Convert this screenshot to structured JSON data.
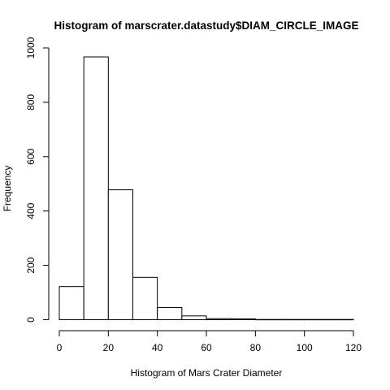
{
  "chart_data": {
    "type": "bar",
    "title": "Histogram of marscrater.datastudy$DIAM_CIRCLE_IMAGE",
    "xlabel": "Histogram of Mars Crater Diameter",
    "ylabel": "Frequency",
    "bins": [
      {
        "from": 0,
        "to": 10,
        "count": 122
      },
      {
        "from": 10,
        "to": 20,
        "count": 967
      },
      {
        "from": 20,
        "to": 30,
        "count": 478
      },
      {
        "from": 30,
        "to": 40,
        "count": 156
      },
      {
        "from": 40,
        "to": 50,
        "count": 45
      },
      {
        "from": 50,
        "to": 60,
        "count": 14
      },
      {
        "from": 60,
        "to": 70,
        "count": 4
      },
      {
        "from": 70,
        "to": 80,
        "count": 3
      },
      {
        "from": 80,
        "to": 90,
        "count": 1
      },
      {
        "from": 90,
        "to": 100,
        "count": 1
      },
      {
        "from": 100,
        "to": 110,
        "count": 1
      },
      {
        "from": 110,
        "to": 120,
        "count": 1
      }
    ],
    "xlim": [
      0,
      120
    ],
    "ylim": [
      0,
      1000
    ],
    "x_ticks": [
      0,
      20,
      40,
      60,
      80,
      100,
      120
    ],
    "y_ticks": [
      0,
      200,
      400,
      600,
      800,
      1000
    ],
    "x_tick_labels": [
      "0",
      "20",
      "40",
      "60",
      "80",
      "100",
      "120"
    ],
    "y_tick_labels": [
      "0",
      "200",
      "400",
      "600",
      "800",
      "1000"
    ],
    "grid": false,
    "colors": {
      "bar_fill": "#ffffff",
      "bar_stroke": "#000000"
    }
  }
}
